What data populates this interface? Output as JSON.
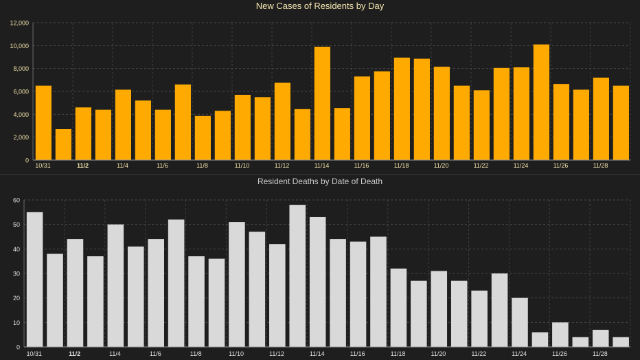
{
  "chart_data": [
    {
      "type": "bar",
      "title": "New Cases of Residents by Day",
      "xlabel": "",
      "ylabel": "",
      "ylim": [
        0,
        12000
      ],
      "yticks": [
        "0",
        "2,000",
        "4,000",
        "6,000",
        "8,000",
        "10,000",
        "12,000"
      ],
      "tick_labels": [
        "10/31",
        "11/2",
        "11/4",
        "11/6",
        "11/8",
        "11/10",
        "11/12",
        "11/14",
        "11/16",
        "11/18",
        "11/20",
        "11/22",
        "11/24",
        "11/26",
        "11/28"
      ],
      "grid": true,
      "bar_color": "#ffaa00",
      "categories": [
        "10/31",
        "11/1",
        "11/2",
        "11/3",
        "11/4",
        "11/5",
        "11/6",
        "11/7",
        "11/8",
        "11/9",
        "11/10",
        "11/11",
        "11/12",
        "11/13",
        "11/14",
        "11/15",
        "11/16",
        "11/17",
        "11/18",
        "11/19",
        "11/20",
        "11/21",
        "11/22",
        "11/23",
        "11/24",
        "11/25",
        "11/26",
        "11/27",
        "11/28",
        "11/29"
      ],
      "values": [
        6500,
        2700,
        4600,
        4400,
        6150,
        5200,
        4400,
        6600,
        3850,
        4300,
        5700,
        5500,
        6750,
        4450,
        9900,
        4550,
        7300,
        7750,
        8950,
        8850,
        8150,
        6500,
        6100,
        8050,
        8100,
        10100,
        6650,
        6150,
        7200,
        6500
      ]
    },
    {
      "type": "bar",
      "title": "Resident Deaths by Date of Death",
      "xlabel": "",
      "ylabel": "",
      "ylim": [
        0,
        60
      ],
      "yticks": [
        "0",
        "10",
        "20",
        "30",
        "40",
        "50",
        "60"
      ],
      "tick_labels": [
        "10/31",
        "11/2",
        "11/4",
        "11/6",
        "11/8",
        "11/10",
        "11/12",
        "11/14",
        "11/16",
        "11/18",
        "11/20",
        "11/22",
        "11/24",
        "11/26",
        "11/28"
      ],
      "grid": true,
      "bar_color": "#d9d9d9",
      "categories": [
        "10/31",
        "11/1",
        "11/2",
        "11/3",
        "11/4",
        "11/5",
        "11/6",
        "11/7",
        "11/8",
        "11/9",
        "11/10",
        "11/11",
        "11/12",
        "11/13",
        "11/14",
        "11/15",
        "11/16",
        "11/17",
        "11/18",
        "11/19",
        "11/20",
        "11/21",
        "11/22",
        "11/23",
        "11/24",
        "11/25",
        "11/26",
        "11/27",
        "11/28",
        "11/29"
      ],
      "values": [
        55,
        38,
        44,
        37,
        50,
        41,
        44,
        52,
        37,
        36,
        51,
        47,
        42,
        58,
        53,
        44,
        43,
        45,
        32,
        27,
        31,
        27,
        23,
        30,
        20,
        6,
        10,
        4,
        7,
        4
      ]
    }
  ]
}
